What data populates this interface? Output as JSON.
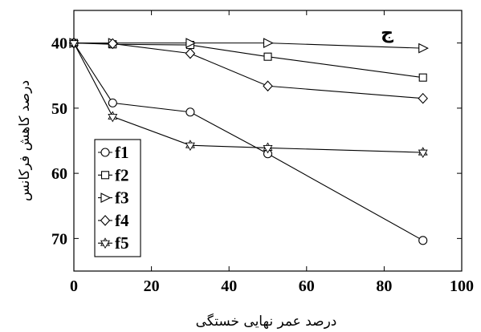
{
  "chart_data": {
    "type": "line",
    "title": "",
    "annotation": "ج",
    "xlabel": "درصد عمر نهایی خستگی",
    "ylabel": "درصد کاهش فرکانس",
    "xlim": [
      0,
      100
    ],
    "ylim": [
      75,
      35
    ],
    "y_inverted": true,
    "xticks": [
      0,
      20,
      40,
      60,
      80,
      100
    ],
    "yticks": [
      40,
      50,
      60,
      70
    ],
    "grid": false,
    "legend_position": "bottom-left",
    "series": [
      {
        "name": "f1",
        "marker": "circle",
        "x": [
          0,
          10,
          30,
          50,
          90
        ],
        "y": [
          40,
          49.2,
          50.6,
          57,
          70.3
        ]
      },
      {
        "name": "f2",
        "marker": "square",
        "x": [
          0,
          10,
          30,
          50,
          90
        ],
        "y": [
          40,
          40.2,
          40.3,
          42.1,
          45.3
        ]
      },
      {
        "name": "f3",
        "marker": "triangle-right",
        "x": [
          0,
          10,
          30,
          50,
          90
        ],
        "y": [
          40,
          40,
          40,
          40,
          40.8
        ]
      },
      {
        "name": "f4",
        "marker": "diamond",
        "x": [
          0,
          10,
          30,
          50,
          90
        ],
        "y": [
          40,
          40.1,
          41.6,
          46.6,
          48.5
        ]
      },
      {
        "name": "f5",
        "marker": "hexagram",
        "x": [
          0,
          10,
          30,
          50,
          90
        ],
        "y": [
          40,
          51.3,
          55.7,
          56.1,
          56.8
        ]
      }
    ]
  }
}
